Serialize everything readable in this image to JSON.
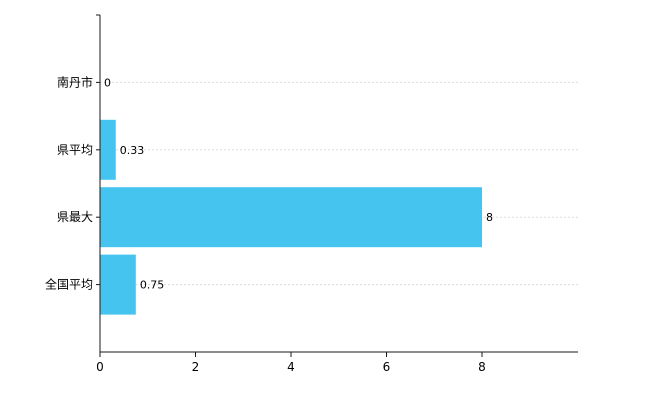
{
  "chart_data": {
    "type": "bar",
    "orientation": "horizontal",
    "title": "",
    "xlabel": "",
    "ylabel": "",
    "categories": [
      "南丹市",
      "県平均",
      "県最大",
      "全国平均"
    ],
    "values": [
      0,
      0.33,
      8,
      0.75
    ],
    "value_labels": [
      "0",
      "0.33",
      "8",
      "0.75"
    ],
    "x_ticks": [
      0,
      2,
      4,
      6,
      8
    ],
    "x_tick_labels": [
      "0",
      "2",
      "4",
      "6",
      "8"
    ],
    "xlim": [
      0,
      10
    ],
    "grid": true,
    "legend": "none",
    "colors": {
      "bar": "#45c4f0",
      "axis": "#1a1a1a",
      "gridline": "#dcdcdc",
      "text": "#000000",
      "background": "#ffffff"
    }
  }
}
